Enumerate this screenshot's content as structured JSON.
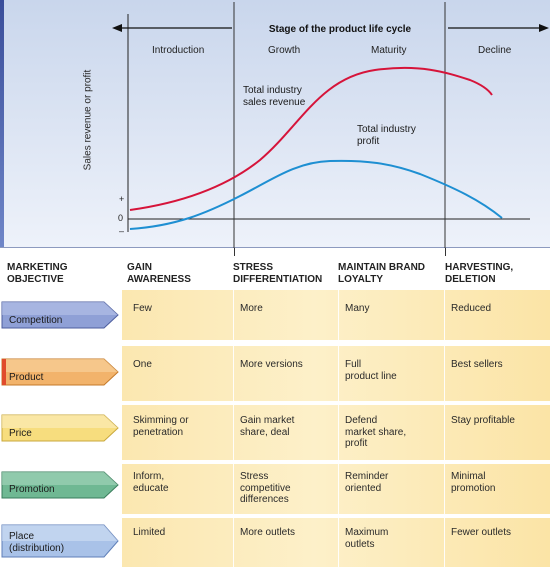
{
  "chart": {
    "stage_heading": "Stage of the product life cycle",
    "y_axis_label": "Sales revenue or profit",
    "axis_ticks": [
      "+",
      "0",
      "–"
    ],
    "stages": [
      "Introduction",
      "Growth",
      "Maturity",
      "Decline"
    ],
    "curves": [
      {
        "label": "Total industry\nsales revenue",
        "color": "#d6143a"
      },
      {
        "label": "Total industry\nprofit",
        "color": "#1e8fd2"
      }
    ],
    "background_color": "#c9d6ec"
  },
  "table": {
    "header": [
      "MARKETING\nOBJECTIVE",
      "GAIN\nAWARENESS",
      "STRESS\nDIFFERENTIATION",
      "MAINTAIN BRAND\nLOYALTY",
      "HARVESTING,\nDELETION"
    ],
    "rows": [
      {
        "label": "Competition",
        "color": "#8fa0d6",
        "cells": [
          "Few",
          "More",
          "Many",
          "Reduced"
        ]
      },
      {
        "label": "Product",
        "color": "#f2b36b",
        "cells": [
          "One",
          "More versions",
          "Full\nproduct line",
          "Best sellers"
        ]
      },
      {
        "label": "Price",
        "color": "#f7dd7e",
        "cells": [
          "Skimming or\npenetration",
          "Gain market\nshare, deal",
          "Defend\nmarket share,\nprofit",
          "Stay profitable"
        ]
      },
      {
        "label": "Promotion",
        "color": "#6fb893",
        "cells": [
          "Inform,\neducate",
          "Stress\ncompetitive\ndifferences",
          "Reminder\noriented",
          "Minimal\npromotion"
        ]
      },
      {
        "label": "Place\n(distribution)",
        "color": "#a9c2e8",
        "cells": [
          "Limited",
          "More outlets",
          "Maximum\noutlets",
          "Fewer outlets"
        ]
      }
    ]
  }
}
